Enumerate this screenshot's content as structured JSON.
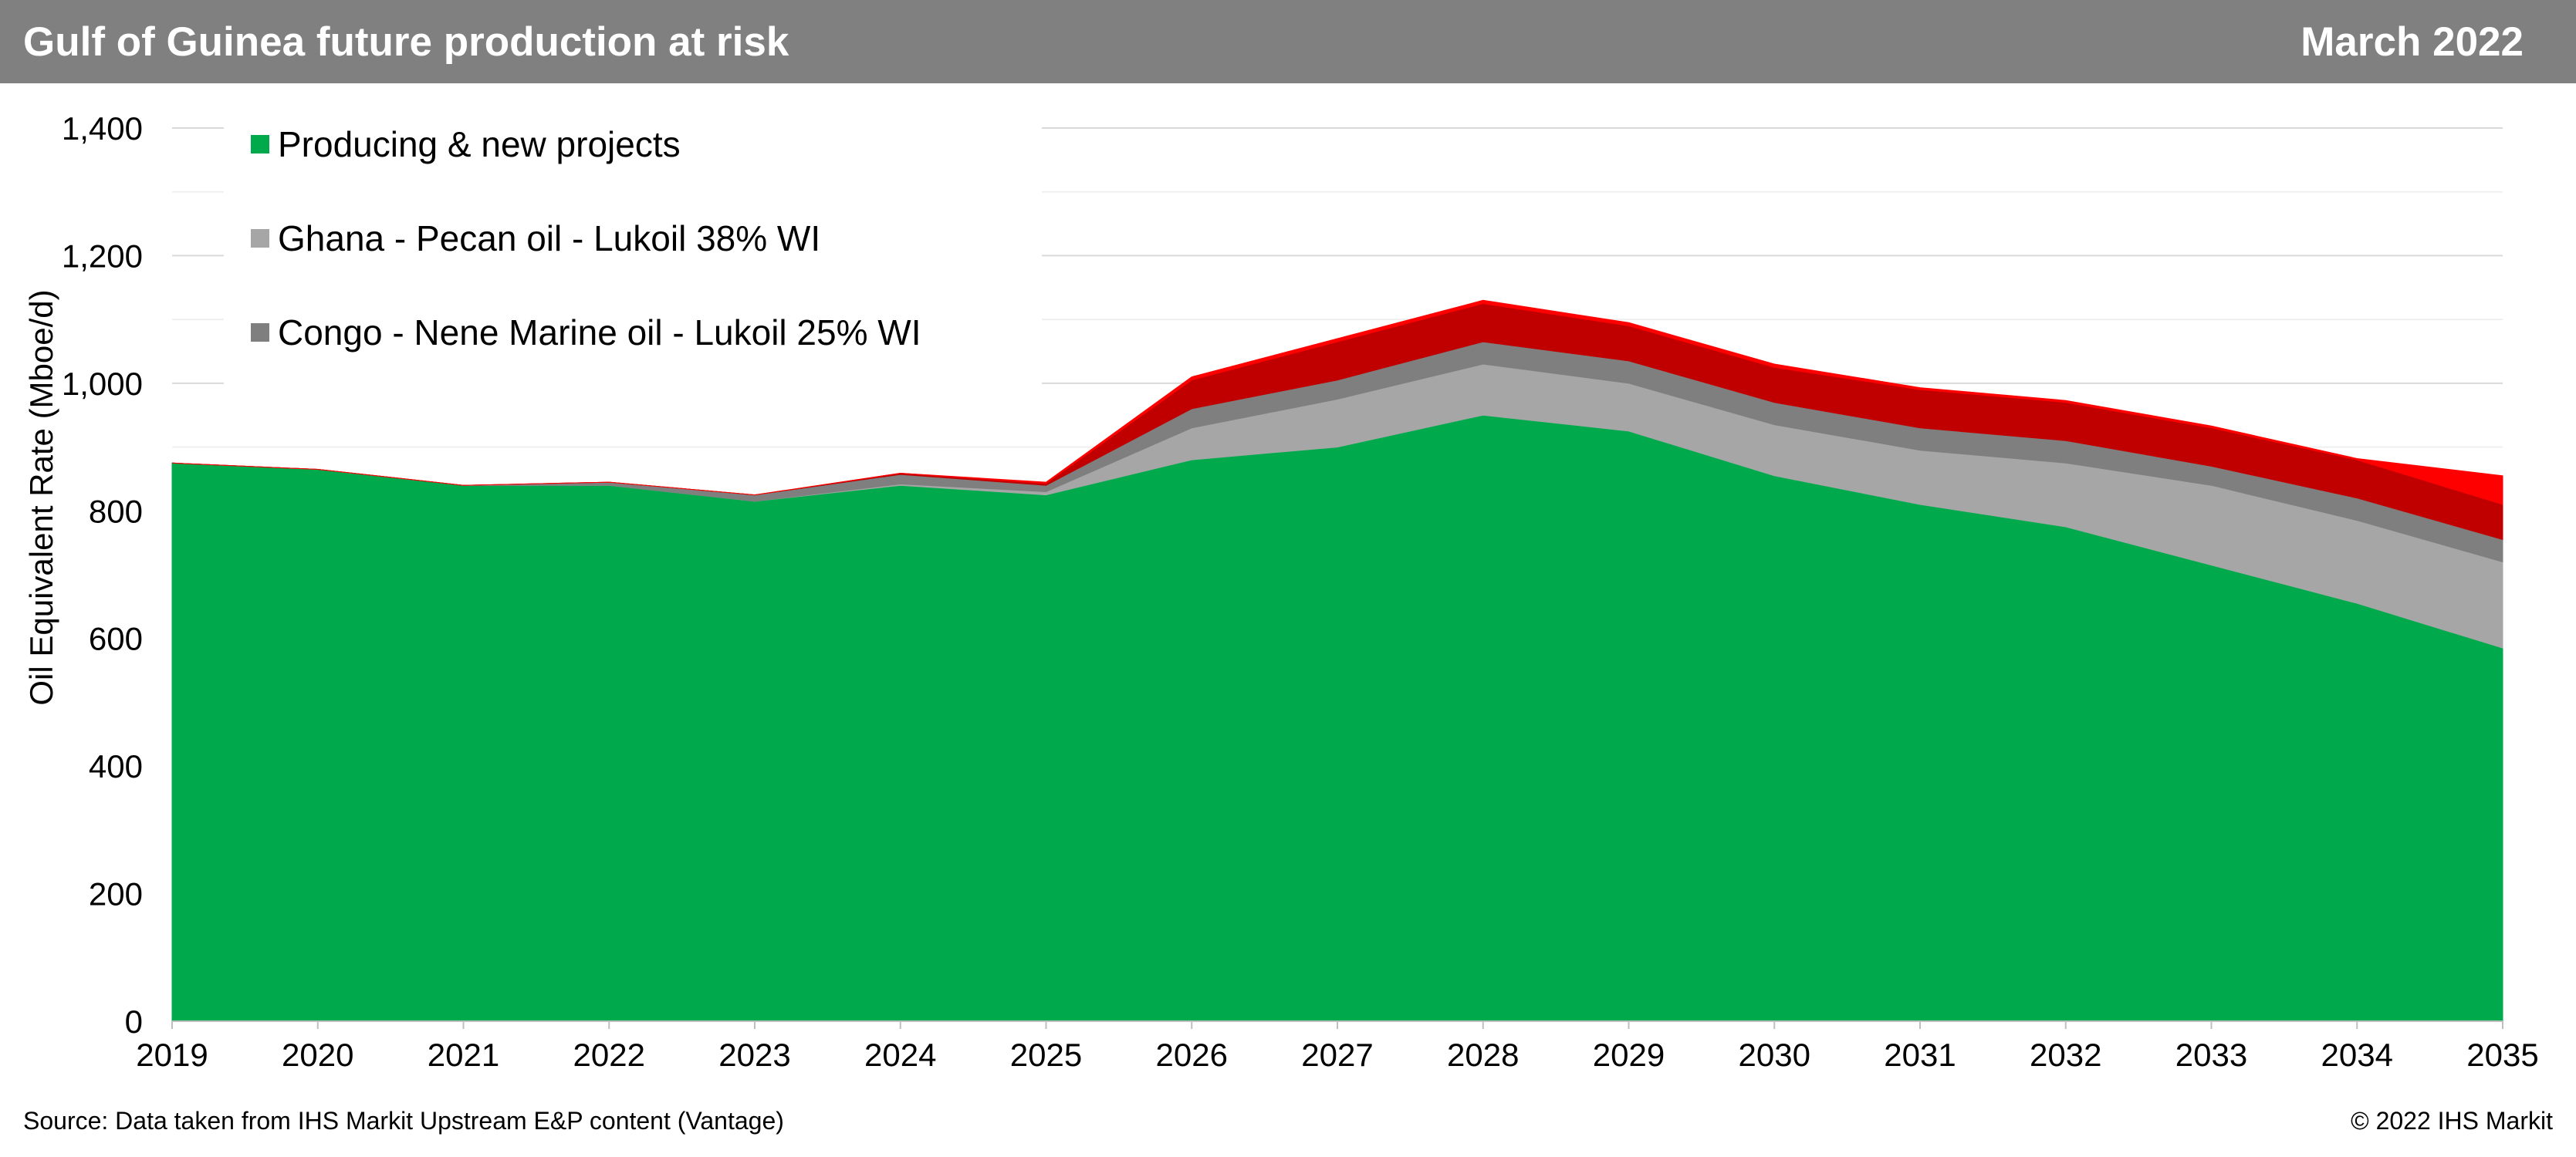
{
  "header": {
    "title": "Gulf of Guinea future production at risk",
    "date": "March 2022"
  },
  "footer": {
    "source": "Source: Data taken from IHS Markit Upstream E&P content (Vantage)",
    "copyright": "© 2022 IHS Markit"
  },
  "colors": {
    "header_bg": "#808080",
    "producing": "#00AA4C",
    "ghana": "#A6A6A6",
    "congo": "#7F7F7F",
    "dark_red": "#C00000",
    "red": "#FF0000",
    "grid": "#D9D9D9"
  },
  "chart_data": {
    "type": "area",
    "stacked": true,
    "title": "",
    "xlabel": "",
    "ylabel": "Oil Equivalent Rate (Mboe/d)",
    "ylim": [
      0,
      1400
    ],
    "yticks": [
      0,
      200,
      400,
      600,
      800,
      1000,
      1200,
      1400
    ],
    "y_tick_labels": [
      "0",
      "200",
      "400",
      "600",
      "800",
      "1,000",
      "1,200",
      "1,400"
    ],
    "grid": true,
    "legend_position": "top-left",
    "x": [
      2019,
      2020,
      2021,
      2022,
      2023,
      2024,
      2025,
      2026,
      2027,
      2028,
      2029,
      2030,
      2031,
      2032,
      2033,
      2034,
      2035
    ],
    "x_tick_labels": [
      "2019",
      "2020",
      "2021",
      "2022",
      "2023",
      "2024",
      "2025",
      "2026",
      "2027",
      "2028",
      "2029",
      "2030",
      "2031",
      "2032",
      "2033",
      "2034",
      "2035"
    ],
    "series": [
      {
        "name": "Producing & new projects",
        "color": "#00AA4C",
        "in_legend": true,
        "values": [
          875,
          865,
          840,
          840,
          815,
          840,
          825,
          880,
          900,
          950,
          925,
          855,
          810,
          775,
          715,
          655,
          585
        ]
      },
      {
        "name": "Ghana - Pecan oil - Lukoil 38% WI",
        "color": "#A6A6A6",
        "in_legend": true,
        "values": [
          0,
          0,
          0,
          0,
          0,
          2,
          5,
          50,
          75,
          80,
          75,
          80,
          85,
          100,
          125,
          130,
          135
        ]
      },
      {
        "name": "Congo - Nene Marine oil - Lukoil 25% WI",
        "color": "#7F7F7F",
        "in_legend": true,
        "values": [
          0,
          0,
          0,
          5,
          10,
          15,
          10,
          30,
          30,
          35,
          35,
          35,
          35,
          35,
          30,
          35,
          35
        ]
      },
      {
        "name": "",
        "color": "#C00000",
        "in_legend": false,
        "values": [
          0,
          0,
          0,
          0,
          0,
          2,
          3,
          45,
          60,
          60,
          55,
          55,
          60,
          60,
          60,
          60,
          55
        ]
      },
      {
        "name": "",
        "color": "#FF0000",
        "in_legend": false,
        "values": [
          0,
          0,
          0,
          0,
          0,
          0,
          2,
          5,
          5,
          5,
          5,
          5,
          3,
          3,
          3,
          2,
          45
        ]
      }
    ]
  }
}
